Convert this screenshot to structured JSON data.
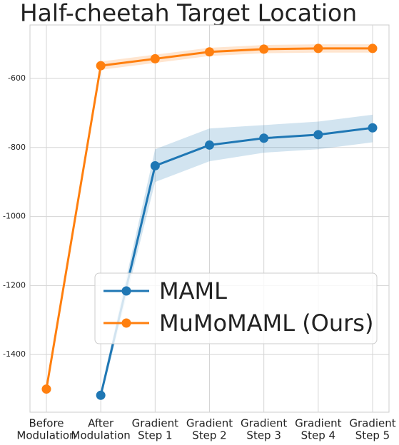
{
  "chart_data": {
    "type": "line",
    "title": "Half-cheetah Target Location",
    "categories": [
      [
        "Before",
        "Modulation"
      ],
      [
        "After",
        "Modulation"
      ],
      [
        "Gradient",
        "Step 1"
      ],
      [
        "Gradient",
        "Step 2"
      ],
      [
        "Gradient",
        "Step 3"
      ],
      [
        "Gradient",
        "Step 4"
      ],
      [
        "Gradient",
        "Step 5"
      ]
    ],
    "series": [
      {
        "name": "MAML",
        "color": "#1f77b4",
        "values": [
          null,
          -1518,
          -853,
          -793,
          -773,
          -763,
          -743
        ],
        "lower": [
          null,
          -1530,
          -900,
          -840,
          -815,
          -805,
          -785
        ],
        "upper": [
          null,
          -1506,
          -805,
          -745,
          -735,
          -725,
          -705
        ]
      },
      {
        "name": "MuMoMAML (Ours)",
        "color": "#ff7f0e",
        "values": [
          -1500,
          -563,
          -543,
          -523,
          -515,
          -513,
          -513
        ],
        "lower": [
          null,
          -575,
          -555,
          -535,
          -527,
          -525,
          -525
        ],
        "upper": [
          null,
          -551,
          -531,
          -511,
          -503,
          -501,
          -501
        ]
      }
    ],
    "ylim": [
      -1567,
      -445
    ],
    "yticks": [
      -1400,
      -1200,
      -1000,
      -800,
      -600
    ],
    "grid": true,
    "legend": "lower right"
  }
}
